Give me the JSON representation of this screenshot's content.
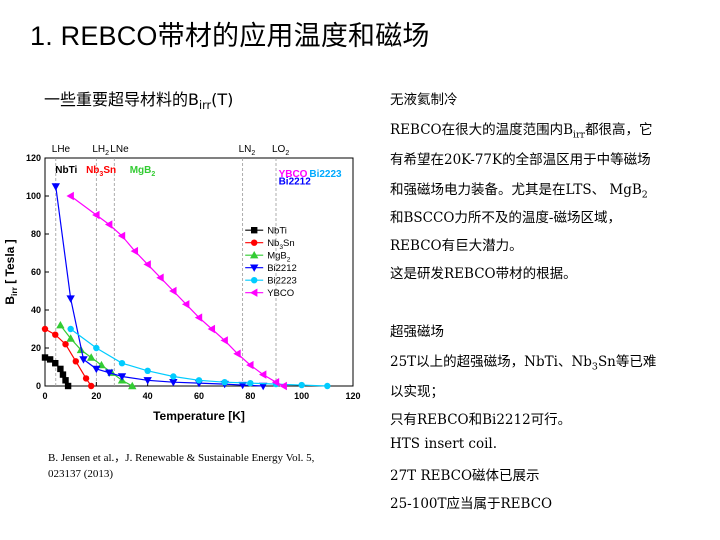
{
  "title": "1. REBCO带材的应用温度和磁场",
  "subtitle": {
    "main": "一些重要超导材料的B",
    "sub": "irr",
    "unit": "(T)"
  },
  "citation": {
    "line1": "B. Jensen et al.，J. Renewable & Sustainable Energy Vol. 5,",
    "line2": "023137 (2013)"
  },
  "right_text": {
    "l1": "无液氦制冷",
    "l2_pre": "REBCO在很大的温度范围内B",
    "l2_sub": "irr",
    "l2_post": "都很高，它",
    "l3": "有希望在20K-77K的全部温区用于中等磁场",
    "l4_pre": "和强磁场电力装备。尤其是在LTS、 MgB",
    "l4_sub": "2",
    "l5": "和BSCCO力所不及的温度-磁场区域，",
    "l6": "REBCO有巨大潜力。",
    "l7": "这是研发REBCO带材的根据。",
    "l8": "超强磁场",
    "l9_pre": "25T以上的超强磁场，NbTi、Nb",
    "l9_sub": "3",
    "l9_post": "Sn等已难",
    "l10": "以实现；",
    "l11": "只有REBCO和Bi2212可行。",
    "l12": "HTS insert coil.",
    "l13": "27T REBCO磁体已展示",
    "l14": "25-100T应当属于REBCO"
  },
  "chart_data": {
    "type": "line",
    "xlabel": "Temperature [K]",
    "ylabel": "B",
    "ylabel_sub": "irr",
    "ylabel_unit": " [ Tesla ]",
    "xlim": [
      0,
      120
    ],
    "ylim": [
      0,
      120
    ],
    "xticks": [
      0,
      20,
      40,
      60,
      80,
      100,
      120
    ],
    "yticks": [
      0,
      20,
      40,
      60,
      80,
      100,
      120
    ],
    "legend_position": "right",
    "ref_lines": [
      {
        "label": "LHe",
        "x": 4.2
      },
      {
        "label": "LH",
        "sub": "2",
        "x": 20
      },
      {
        "label": "LNe",
        "x": 27
      },
      {
        "label": "LN",
        "sub": "2",
        "x": 77
      },
      {
        "label": "LO",
        "sub": "2",
        "x": 90
      }
    ],
    "region_labels": [
      {
        "text": "NbTi",
        "color": "#000000",
        "x": 4,
        "y": 112
      },
      {
        "text": "Nb",
        "sub": "3",
        "tail": "Sn",
        "color": "#ff0000",
        "x": 16,
        "y": 112
      },
      {
        "text": "MgB",
        "sub": "2",
        "color": "#33cc33",
        "x": 33,
        "y": 112
      },
      {
        "text": "YBCO",
        "color": "#ff00ff",
        "x": 91,
        "y": 110
      },
      {
        "text": "Bi2223",
        "color": "#00aaff",
        "x": 103,
        "y": 110
      },
      {
        "text": "Bi2212",
        "color": "#0000ff",
        "x": 91,
        "y": 106
      }
    ],
    "series": [
      {
        "name": "NbTi",
        "color": "#000000",
        "marker": "square",
        "x": [
          0,
          2,
          4,
          6,
          7,
          8,
          9
        ],
        "y": [
          15,
          14,
          12,
          9,
          6,
          3,
          0
        ]
      },
      {
        "name": "Nb3Sn",
        "label": "Nb",
        "label_sub": "3",
        "label_tail": "Sn",
        "color": "#ff0000",
        "marker": "circle",
        "x": [
          0,
          4,
          8,
          12,
          16,
          18
        ],
        "y": [
          30,
          27,
          22,
          13,
          4,
          0
        ]
      },
      {
        "name": "MgB2",
        "label": "MgB",
        "label_sub": "2",
        "color": "#33cc33",
        "marker": "triangle-up",
        "x": [
          6,
          10,
          14,
          18,
          22,
          26,
          30,
          34
        ],
        "y": [
          32,
          25,
          19,
          15,
          11,
          7,
          3,
          0
        ]
      },
      {
        "name": "Bi2212",
        "color": "#0000ff",
        "marker": "triangle-down",
        "x": [
          4.2,
          10,
          15,
          20,
          25,
          30,
          40,
          50,
          60,
          70,
          77,
          85
        ],
        "y": [
          105,
          46,
          14,
          9,
          7,
          5,
          3,
          2,
          1.5,
          1,
          0.5,
          0
        ]
      },
      {
        "name": "Bi2223",
        "color": "#00ccff",
        "marker": "circle",
        "x": [
          10,
          20,
          30,
          40,
          50,
          60,
          70,
          80,
          90,
          100,
          110
        ],
        "y": [
          30,
          20,
          12,
          8,
          5,
          3,
          2,
          1.5,
          1,
          0.5,
          0
        ]
      },
      {
        "name": "YBCO",
        "color": "#ff00ff",
        "marker": "triangle-left",
        "x": [
          10,
          20,
          25,
          30,
          35,
          40,
          45,
          50,
          55,
          60,
          65,
          70,
          75,
          80,
          85,
          90,
          93
        ],
        "y": [
          100,
          90,
          85,
          79,
          71,
          64,
          57,
          50,
          43,
          36,
          30,
          24,
          17,
          11,
          6,
          2,
          0
        ]
      }
    ]
  }
}
